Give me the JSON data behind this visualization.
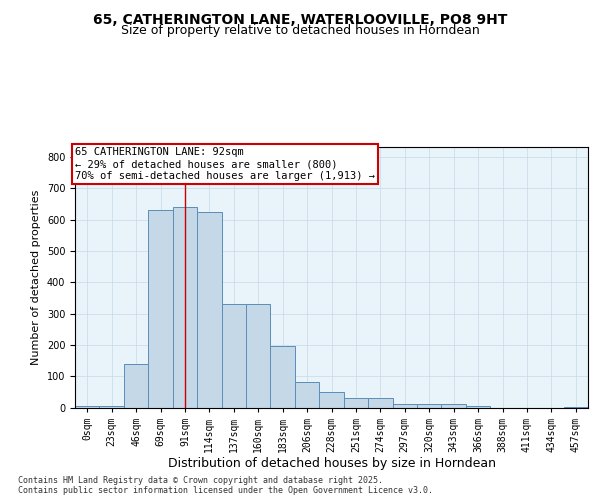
{
  "title_line1": "65, CATHERINGTON LANE, WATERLOOVILLE, PO8 9HT",
  "title_line2": "Size of property relative to detached houses in Horndean",
  "xlabel": "Distribution of detached houses by size in Horndean",
  "ylabel": "Number of detached properties",
  "bar_labels": [
    "0sqm",
    "23sqm",
    "46sqm",
    "69sqm",
    "91sqm",
    "114sqm",
    "137sqm",
    "160sqm",
    "183sqm",
    "206sqm",
    "228sqm",
    "251sqm",
    "274sqm",
    "297sqm",
    "320sqm",
    "343sqm",
    "366sqm",
    "388sqm",
    "411sqm",
    "434sqm",
    "457sqm"
  ],
  "bar_heights": [
    5,
    5,
    140,
    630,
    640,
    625,
    330,
    330,
    195,
    80,
    50,
    30,
    30,
    10,
    10,
    12,
    5,
    0,
    0,
    0,
    2
  ],
  "bar_color": "#c5d8e8",
  "bar_edge_color": "#5b8db8",
  "vline_x_index": 4,
  "vline_color": "#cc0000",
  "annotation_box_text": "65 CATHERINGTON LANE: 92sqm\n← 29% of detached houses are smaller (800)\n70% of semi-detached houses are larger (1,913) →",
  "annotation_box_facecolor": "white",
  "annotation_box_edgecolor": "#cc0000",
  "ylim": [
    0,
    830
  ],
  "yticks": [
    0,
    100,
    200,
    300,
    400,
    500,
    600,
    700,
    800
  ],
  "grid_color": "#c8d8e8",
  "background_color": "#e8f3fa",
  "footer_text": "Contains HM Land Registry data © Crown copyright and database right 2025.\nContains public sector information licensed under the Open Government Licence v3.0.",
  "title_fontsize": 10,
  "subtitle_fontsize": 9,
  "ylabel_fontsize": 8,
  "xlabel_fontsize": 9,
  "tick_fontsize": 7,
  "annotation_fontsize": 7.5,
  "footer_fontsize": 6
}
